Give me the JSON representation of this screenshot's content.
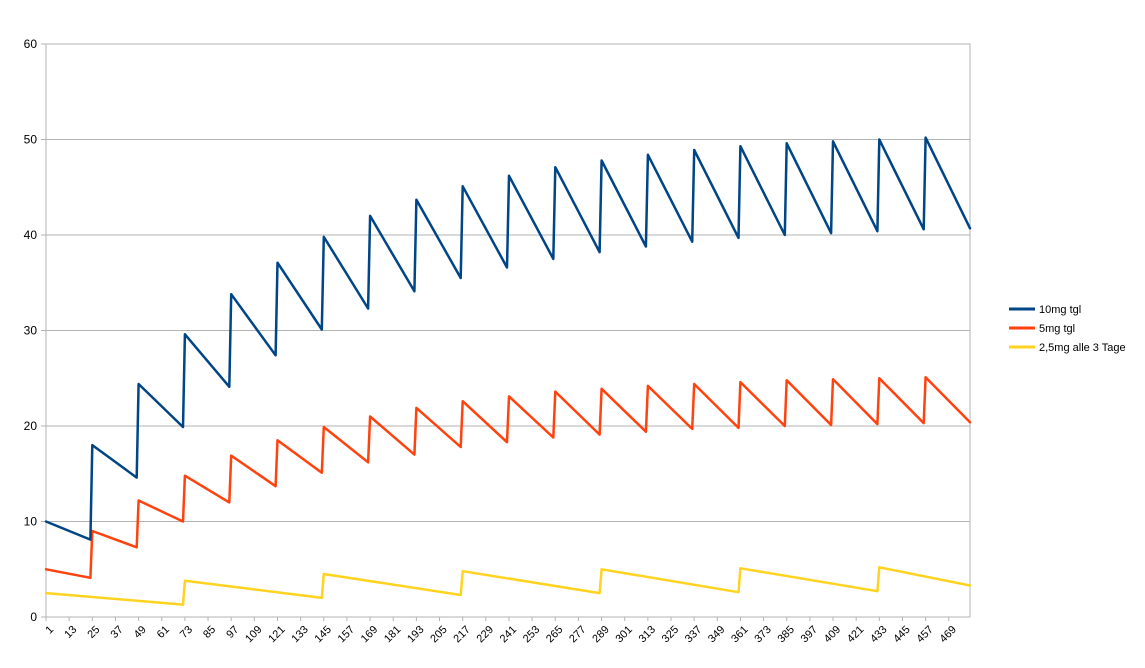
{
  "chart_data": {
    "type": "line",
    "title": "",
    "xlabel": "",
    "ylabel": "",
    "xlim": [
      1,
      480
    ],
    "ylim": [
      0,
      60
    ],
    "y_ticks": [
      0,
      10,
      20,
      30,
      40,
      50,
      60
    ],
    "x_tick_labels": [
      1,
      13,
      25,
      37,
      49,
      61,
      73,
      85,
      97,
      109,
      121,
      133,
      145,
      157,
      169,
      181,
      193,
      205,
      217,
      229,
      241,
      253,
      265,
      277,
      289,
      301,
      313,
      325,
      337,
      349,
      361,
      373,
      385,
      397,
      409,
      421,
      433,
      445,
      457,
      469
    ],
    "grid": "horizontal",
    "legend_position": "right",
    "series": [
      {
        "name": "10mg tgl",
        "color": "#004586",
        "dose_interval": 24,
        "points": [
          [
            1,
            10.0
          ],
          [
            24,
            8.1
          ],
          [
            25,
            18.0
          ],
          [
            48,
            14.6
          ],
          [
            49,
            24.4
          ],
          [
            72,
            19.9
          ],
          [
            73,
            29.6
          ],
          [
            96,
            24.1
          ],
          [
            97,
            33.8
          ],
          [
            120,
            27.4
          ],
          [
            121,
            37.1
          ],
          [
            144,
            30.1
          ],
          [
            145,
            39.8
          ],
          [
            168,
            32.3
          ],
          [
            169,
            42.0
          ],
          [
            192,
            34.1
          ],
          [
            193,
            43.7
          ],
          [
            216,
            35.5
          ],
          [
            217,
            45.1
          ],
          [
            240,
            36.6
          ],
          [
            241,
            46.2
          ],
          [
            264,
            37.5
          ],
          [
            265,
            47.1
          ],
          [
            288,
            38.2
          ],
          [
            289,
            47.8
          ],
          [
            312,
            38.8
          ],
          [
            313,
            48.4
          ],
          [
            336,
            39.3
          ],
          [
            337,
            48.9
          ],
          [
            360,
            39.7
          ],
          [
            361,
            49.3
          ],
          [
            384,
            40.0
          ],
          [
            385,
            49.6
          ],
          [
            408,
            40.2
          ],
          [
            409,
            49.8
          ],
          [
            432,
            40.4
          ],
          [
            433,
            50.0
          ],
          [
            456,
            40.6
          ],
          [
            457,
            50.2
          ],
          [
            480,
            40.7
          ]
        ]
      },
      {
        "name": "5mg tgl",
        "color": "#ff420e",
        "dose_interval": 24,
        "points": [
          [
            1,
            5.0
          ],
          [
            24,
            4.1
          ],
          [
            25,
            9.0
          ],
          [
            48,
            7.3
          ],
          [
            49,
            12.2
          ],
          [
            72,
            10.0
          ],
          [
            73,
            14.8
          ],
          [
            96,
            12.0
          ],
          [
            97,
            16.9
          ],
          [
            120,
            13.7
          ],
          [
            121,
            18.5
          ],
          [
            144,
            15.1
          ],
          [
            145,
            19.9
          ],
          [
            168,
            16.2
          ],
          [
            169,
            21.0
          ],
          [
            192,
            17.0
          ],
          [
            193,
            21.9
          ],
          [
            216,
            17.8
          ],
          [
            217,
            22.6
          ],
          [
            240,
            18.3
          ],
          [
            241,
            23.1
          ],
          [
            264,
            18.8
          ],
          [
            265,
            23.6
          ],
          [
            288,
            19.1
          ],
          [
            289,
            23.9
          ],
          [
            312,
            19.4
          ],
          [
            313,
            24.2
          ],
          [
            336,
            19.7
          ],
          [
            337,
            24.4
          ],
          [
            360,
            19.8
          ],
          [
            361,
            24.6
          ],
          [
            384,
            20.0
          ],
          [
            385,
            24.8
          ],
          [
            408,
            20.1
          ],
          [
            409,
            24.9
          ],
          [
            432,
            20.2
          ],
          [
            433,
            25.0
          ],
          [
            456,
            20.3
          ],
          [
            457,
            25.1
          ],
          [
            480,
            20.4
          ]
        ]
      },
      {
        "name": "2,5mg alle 3 Tage",
        "color": "#ffd320",
        "dose_interval": 72,
        "points": [
          [
            1,
            2.5
          ],
          [
            72,
            1.3
          ],
          [
            73,
            3.8
          ],
          [
            144,
            2.0
          ],
          [
            145,
            4.5
          ],
          [
            216,
            2.3
          ],
          [
            217,
            4.8
          ],
          [
            288,
            2.5
          ],
          [
            289,
            5.0
          ],
          [
            360,
            2.6
          ],
          [
            361,
            5.1
          ],
          [
            432,
            2.7
          ],
          [
            433,
            5.2
          ],
          [
            480,
            3.3
          ]
        ]
      }
    ]
  }
}
